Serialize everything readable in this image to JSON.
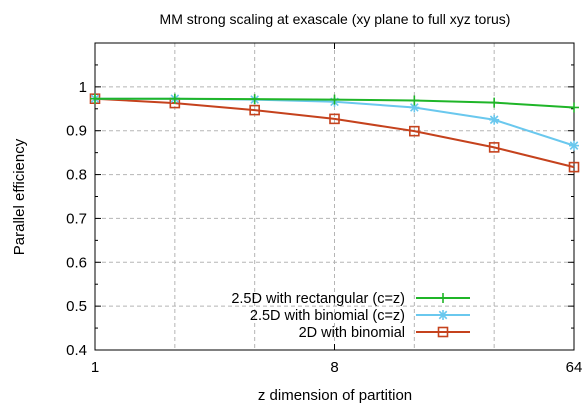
{
  "chart_data": {
    "type": "line",
    "title": "MM strong scaling at exascale (xy plane to full xyz torus)",
    "xlabel": "z dimension of partition",
    "ylabel": "Parallel efficiency",
    "x_scale": "log2",
    "xlim": [
      1,
      64
    ],
    "ylim": [
      0.4,
      1.1
    ],
    "x_ticks": [
      1,
      8,
      64
    ],
    "y_ticks": [
      0.4,
      0.5,
      0.6,
      0.7,
      0.8,
      0.9,
      1
    ],
    "x_grid": [
      1,
      2,
      4,
      8,
      16,
      32,
      64
    ],
    "grid": true,
    "legend_position": "bottom-right",
    "series": [
      {
        "name": "2.5D with rectangular (c=z)",
        "color": "#1fb528",
        "marker": "plus",
        "x": [
          1,
          2,
          4,
          8,
          16,
          32,
          64
        ],
        "y": [
          0.973,
          0.973,
          0.972,
          0.971,
          0.969,
          0.964,
          0.953
        ]
      },
      {
        "name": "2.5D with binomial (c=z)",
        "color": "#6ac8ee",
        "marker": "star",
        "x": [
          1,
          2,
          4,
          8,
          16,
          32,
          64
        ],
        "y": [
          0.973,
          0.973,
          0.971,
          0.966,
          0.953,
          0.925,
          0.866
        ]
      },
      {
        "name": "2D with binomial",
        "color": "#c5421d",
        "marker": "square",
        "x": [
          1,
          2,
          4,
          8,
          16,
          32,
          64
        ],
        "y": [
          0.973,
          0.963,
          0.947,
          0.927,
          0.899,
          0.862,
          0.817
        ]
      }
    ]
  }
}
